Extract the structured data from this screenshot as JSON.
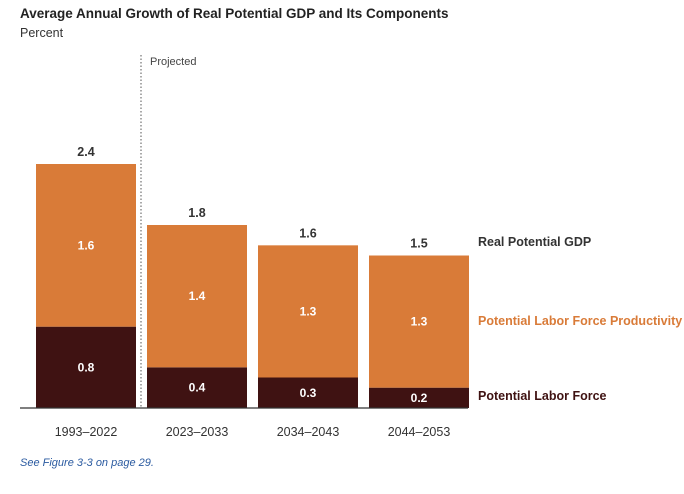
{
  "title": "Average Annual Growth of Real Potential GDP and Its Components",
  "subtitle": "Percent",
  "note": "See Figure 3-3 on page 29.",
  "projected_label": "Projected",
  "colors": {
    "productivity": "#d97b38",
    "labor_force": "#3f1212",
    "axis": "#333333"
  },
  "chart_data": {
    "type": "bar",
    "stacked": true,
    "categories": [
      "1993–2022",
      "2023–2033",
      "2034–2043",
      "2044–2053"
    ],
    "series": [
      {
        "name": "Potential Labor Force",
        "values": [
          0.8,
          0.4,
          0.3,
          0.2
        ],
        "labels": [
          "0.8",
          "0.4",
          "0.3",
          "0.2"
        ]
      },
      {
        "name": "Potential Labor Force Productivity",
        "values": [
          1.6,
          1.4,
          1.3,
          1.3
        ],
        "labels": [
          "1.6",
          "1.4",
          "1.3",
          "1.3"
        ]
      }
    ],
    "totals": {
      "name": "Real Potential GDP",
      "values": [
        2.4,
        1.8,
        1.6,
        1.5
      ],
      "labels": [
        "2.4",
        "1.8",
        "1.6",
        "1.5"
      ]
    },
    "ylim": [
      0,
      2.4
    ],
    "grid": false
  }
}
